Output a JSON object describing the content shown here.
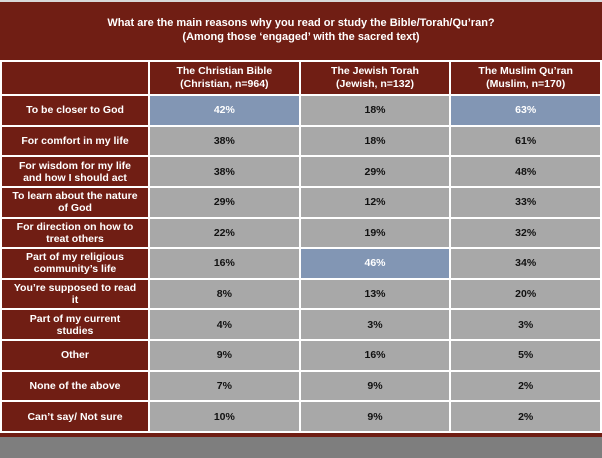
{
  "title": {
    "line1": "What are the main reasons why you read or study the Bible/Torah/Qu’ran?",
    "line2": "(Among those ‘engaged’ with the sacred text)"
  },
  "table": {
    "columns": [
      {
        "line1": "The Christian Bible",
        "line2": "(Christian, n=964)"
      },
      {
        "line1": "The Jewish Torah",
        "line2": "(Jewish, n=132)"
      },
      {
        "line1": "The Muslim Qu’ran",
        "line2": "(Muslim, n=170)"
      }
    ],
    "rows": [
      {
        "label": "To be closer to God",
        "values": [
          "42%",
          "18%",
          "63%"
        ]
      },
      {
        "label": "For comfort in my life",
        "values": [
          "38%",
          "18%",
          "61%"
        ]
      },
      {
        "label": "For wisdom for my life and how I should act",
        "values": [
          "38%",
          "29%",
          "48%"
        ]
      },
      {
        "label": "To learn about the nature of God",
        "values": [
          "29%",
          "12%",
          "33%"
        ]
      },
      {
        "label": "For direction on how to treat others",
        "values": [
          "22%",
          "19%",
          "32%"
        ]
      },
      {
        "label": "Part of my religious community’s life",
        "values": [
          "16%",
          "46%",
          "34%"
        ]
      },
      {
        "label": "You’re supposed to read it",
        "values": [
          "8%",
          "13%",
          "20%"
        ]
      },
      {
        "label": "Part of my current studies",
        "values": [
          "4%",
          "3%",
          "3%"
        ]
      },
      {
        "label": "Other",
        "values": [
          "9%",
          "16%",
          "5%"
        ]
      },
      {
        "label": "None of the above",
        "values": [
          "7%",
          "9%",
          "2%"
        ]
      },
      {
        "label": "Can’t say/ Not sure",
        "values": [
          "10%",
          "9%",
          "2%"
        ]
      }
    ],
    "highlighted_cells": [
      [
        0,
        0
      ],
      [
        0,
        2
      ],
      [
        5,
        1
      ]
    ]
  },
  "colors": {
    "maroon": "#701E14",
    "cell_gray": "#A8A8A8",
    "highlight_blue": "#8296B4",
    "footer_gray": "#7E7E7E",
    "grid_white": "#FFFFFF",
    "top_border": "#D9D9D9",
    "label_text": "#FFFFFF",
    "value_text": "#111111"
  },
  "chart_data": {
    "type": "table",
    "title": "What are the main reasons why you read or study the Bible/Torah/Qu’ran? (Among those ‘engaged’ with the sacred text)",
    "categories": [
      "To be closer to God",
      "For comfort in my life",
      "For wisdom for my life and how I should act",
      "To learn about the nature of God",
      "For direction on how to treat others",
      "Part of my religious community’s life",
      "You’re supposed to read it",
      "Part of my current studies",
      "Other",
      "None of the above",
      "Can’t say/ Not sure"
    ],
    "series": [
      {
        "name": "The Christian Bible (Christian, n=964)",
        "values": [
          42,
          38,
          38,
          29,
          22,
          16,
          8,
          4,
          9,
          7,
          10
        ]
      },
      {
        "name": "The Jewish Torah (Jewish, n=132)",
        "values": [
          18,
          18,
          29,
          12,
          19,
          46,
          13,
          3,
          16,
          9,
          9
        ]
      },
      {
        "name": "The Muslim Qu’ran (Muslim, n=170)",
        "values": [
          63,
          61,
          48,
          33,
          32,
          34,
          20,
          3,
          5,
          2,
          2
        ]
      }
    ],
    "unit": "%",
    "highlighted": [
      {
        "row": "To be closer to God",
        "column": "The Christian Bible",
        "value": 42
      },
      {
        "row": "To be closer to God",
        "column": "The Muslim Qu’ran",
        "value": 63
      },
      {
        "row": "Part of my religious community’s life",
        "column": "The Jewish Torah",
        "value": 46
      }
    ],
    "legend_position": "none",
    "grid": true
  }
}
